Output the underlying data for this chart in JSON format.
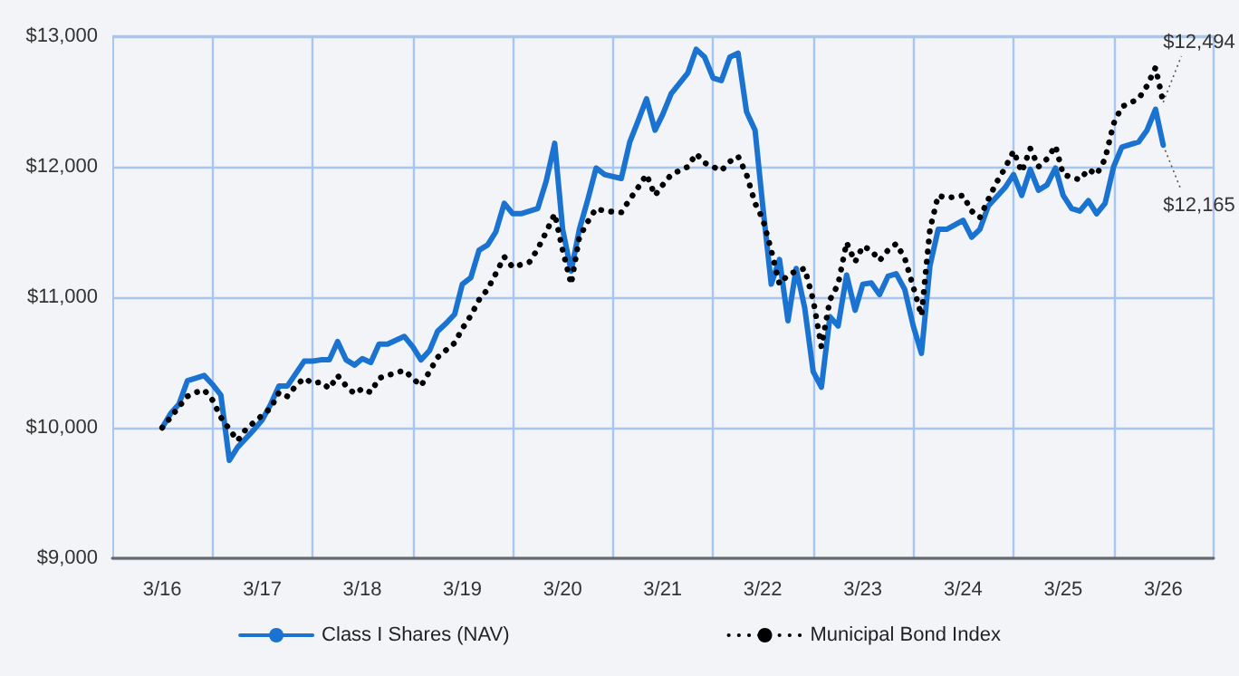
{
  "chart_data": {
    "type": "line",
    "xlim": [
      "2015-09",
      "2026-09"
    ],
    "xticks": [
      {
        "value": "2016-03",
        "label": "3/16"
      },
      {
        "value": "2016-09",
        "label": null
      },
      {
        "value": "2017-03",
        "label": "3/17"
      },
      {
        "value": "2017-09",
        "label": null
      },
      {
        "value": "2018-03",
        "label": "3/18"
      },
      {
        "value": "2018-09",
        "label": null
      },
      {
        "value": "2019-03",
        "label": "3/19"
      },
      {
        "value": "2019-09",
        "label": null
      },
      {
        "value": "2020-03",
        "label": "3/20"
      },
      {
        "value": "2020-09",
        "label": null
      },
      {
        "value": "2021-03",
        "label": "3/21"
      },
      {
        "value": "2021-09",
        "label": null
      },
      {
        "value": "2022-03",
        "label": "3/22"
      },
      {
        "value": "2022-09",
        "label": null
      },
      {
        "value": "2023-03",
        "label": "3/23"
      },
      {
        "value": "2023-09",
        "label": null
      },
      {
        "value": "2024-03",
        "label": "3/24"
      },
      {
        "value": "2024-09",
        "label": null
      },
      {
        "value": "2025-03",
        "label": "3/25"
      },
      {
        "value": "2025-09",
        "label": null
      },
      {
        "value": "2026-03",
        "label": "3/26"
      }
    ],
    "ylim": [
      9000,
      13000
    ],
    "yticks": [
      {
        "value": 9000,
        "label": "$9,000"
      },
      {
        "value": 10000,
        "label": "$10,000"
      },
      {
        "value": 11000,
        "label": "$11,000"
      },
      {
        "value": 12000,
        "label": "$12,000"
      },
      {
        "value": 13000,
        "label": "$13,000"
      }
    ],
    "grid": true,
    "legend": "bottom",
    "marker": "none",
    "series": [
      {
        "name": "Class I Shares (NAV)",
        "color": "#1a73d0",
        "line_style": "solid",
        "x": [
          "2016-03",
          "2016-04",
          "2016-05",
          "2016-06",
          "2016-07",
          "2016-08",
          "2016-09",
          "2016-10",
          "2016-11",
          "2016-12",
          "2017-02",
          "2017-03",
          "2017-04",
          "2017-05",
          "2017-06",
          "2017-08",
          "2017-09",
          "2017-10",
          "2017-11",
          "2017-12",
          "2018-01",
          "2018-02",
          "2018-03",
          "2018-04",
          "2018-05",
          "2018-06",
          "2018-08",
          "2018-09",
          "2018-10",
          "2018-11",
          "2018-12",
          "2019-01",
          "2019-02",
          "2019-03",
          "2019-04",
          "2019-05",
          "2019-06",
          "2019-07",
          "2019-08",
          "2019-09",
          "2019-10",
          "2019-12",
          "2020-01",
          "2020-02",
          "2020-03",
          "2020-04",
          "2020-05",
          "2020-06",
          "2020-07",
          "2020-08",
          "2020-10",
          "2020-11",
          "2020-12",
          "2021-01",
          "2021-02",
          "2021-03",
          "2021-04",
          "2021-06",
          "2021-07",
          "2021-08",
          "2021-09",
          "2021-10",
          "2021-11",
          "2021-12",
          "2022-01",
          "2022-02",
          "2022-03",
          "2022-04",
          "2022-05",
          "2022-06",
          "2022-07",
          "2022-08",
          "2022-09",
          "2022-10",
          "2022-11",
          "2022-12",
          "2023-01",
          "2023-02",
          "2023-03",
          "2023-04",
          "2023-05",
          "2023-06",
          "2023-07",
          "2023-08",
          "2023-09",
          "2023-10",
          "2023-11",
          "2023-12",
          "2024-01",
          "2024-03",
          "2024-04",
          "2024-05",
          "2024-06",
          "2024-08",
          "2024-09",
          "2024-10",
          "2024-11",
          "2024-12",
          "2025-01",
          "2025-02",
          "2025-03",
          "2025-04",
          "2025-05",
          "2025-06",
          "2025-07",
          "2025-08",
          "2025-09",
          "2025-10",
          "2025-12",
          "2026-01",
          "2026-02",
          "2026-03"
        ],
        "values": [
          10000,
          10110,
          10180,
          10360,
          10380,
          10400,
          10330,
          10250,
          9750,
          9850,
          9990,
          10060,
          10180,
          10320,
          10320,
          10510,
          10510,
          10520,
          10520,
          10660,
          10520,
          10480,
          10530,
          10500,
          10640,
          10640,
          10700,
          10620,
          10520,
          10590,
          10740,
          10800,
          10870,
          11100,
          11150,
          11360,
          11400,
          11500,
          11720,
          11640,
          11640,
          11680,
          11890,
          12180,
          11520,
          11200,
          11520,
          11750,
          11990,
          11940,
          11910,
          12190,
          12350,
          12520,
          12280,
          12400,
          12560,
          12720,
          12900,
          12840,
          12680,
          12660,
          12840,
          12870,
          12420,
          12280,
          11700,
          11100,
          11290,
          10820,
          11220,
          10920,
          10430,
          10310,
          10850,
          10780,
          11170,
          10900,
          11100,
          11110,
          11020,
          11160,
          11180,
          11060,
          10780,
          10570,
          11240,
          11520,
          11520,
          11590,
          11460,
          11520,
          11700,
          11840,
          11940,
          11780,
          11980,
          11820,
          11860,
          11990,
          11780,
          11680,
          11660,
          11740,
          11640,
          11720,
          12000,
          12150,
          12190,
          12280,
          12440,
          12165
        ]
      },
      {
        "name": "Municipal Bond Index",
        "color": "#000000",
        "line_style": "dotted",
        "x": [
          "2016-03",
          "2016-04",
          "2016-05",
          "2016-06",
          "2016-07",
          "2016-08",
          "2016-09",
          "2016-10",
          "2016-12",
          "2017-01",
          "2017-04",
          "2017-05",
          "2017-06",
          "2017-07",
          "2017-08",
          "2017-09",
          "2017-10",
          "2017-11",
          "2017-12",
          "2018-01",
          "2018-02",
          "2018-03",
          "2018-04",
          "2018-05",
          "2018-07",
          "2018-08",
          "2018-09",
          "2018-10",
          "2018-11",
          "2018-12",
          "2019-02",
          "2019-03",
          "2019-04",
          "2019-05",
          "2019-06",
          "2019-07",
          "2019-08",
          "2019-09",
          "2019-11",
          "2019-12",
          "2020-01",
          "2020-02",
          "2020-03",
          "2020-04",
          "2020-05",
          "2020-06",
          "2020-07",
          "2020-08",
          "2020-10",
          "2020-11",
          "2020-12",
          "2021-01",
          "2021-02",
          "2021-03",
          "2021-04",
          "2021-06",
          "2021-07",
          "2021-08",
          "2021-10",
          "2021-11",
          "2021-12",
          "2022-01",
          "2022-02",
          "2022-03",
          "2022-04",
          "2022-05",
          "2022-06",
          "2022-07",
          "2022-08",
          "2022-09",
          "2022-10",
          "2022-11",
          "2022-12",
          "2023-01",
          "2023-02",
          "2023-03",
          "2023-04",
          "2023-05",
          "2023-06",
          "2023-07",
          "2023-08",
          "2023-09",
          "2023-10",
          "2023-11",
          "2023-12",
          "2024-01",
          "2024-03",
          "2024-04",
          "2024-05",
          "2024-06",
          "2024-07",
          "2024-08",
          "2024-09",
          "2024-10",
          "2024-11",
          "2024-12",
          "2025-01",
          "2025-02",
          "2025-03",
          "2025-05",
          "2025-06",
          "2025-07",
          "2025-08",
          "2025-09",
          "2025-10",
          "2025-12",
          "2026-01",
          "2026-02",
          "2026-03"
        ],
        "values": [
          10000,
          10080,
          10160,
          10240,
          10270,
          10290,
          10210,
          10080,
          9900,
          9990,
          10150,
          10270,
          10240,
          10320,
          10380,
          10340,
          10350,
          10300,
          10400,
          10320,
          10260,
          10300,
          10270,
          10380,
          10420,
          10440,
          10380,
          10320,
          10430,
          10540,
          10650,
          10760,
          10860,
          10980,
          11060,
          11180,
          11310,
          11230,
          11270,
          11370,
          11500,
          11640,
          11360,
          11100,
          11460,
          11580,
          11680,
          11660,
          11650,
          11750,
          11840,
          11940,
          11780,
          11860,
          11940,
          12000,
          12100,
          12030,
          11970,
          12040,
          12080,
          11940,
          11720,
          11600,
          11360,
          11100,
          11170,
          11200,
          11220,
          10980,
          10620,
          10980,
          11100,
          11420,
          11270,
          11390,
          11360,
          11280,
          11360,
          11410,
          11300,
          11080,
          10860,
          11520,
          11780,
          11760,
          11780,
          11660,
          11610,
          11750,
          11880,
          11990,
          12120,
          11960,
          12140,
          12000,
          12060,
          12160,
          11940,
          11900,
          11980,
          11940,
          12060,
          12330,
          12460,
          12520,
          12620,
          12760,
          12494
        ]
      }
    ],
    "annotations": [
      {
        "text": "$12,494",
        "x": "2026-03",
        "y": 12494
      },
      {
        "text": "$12,165",
        "x": "2026-03",
        "y": 12165
      }
    ]
  }
}
